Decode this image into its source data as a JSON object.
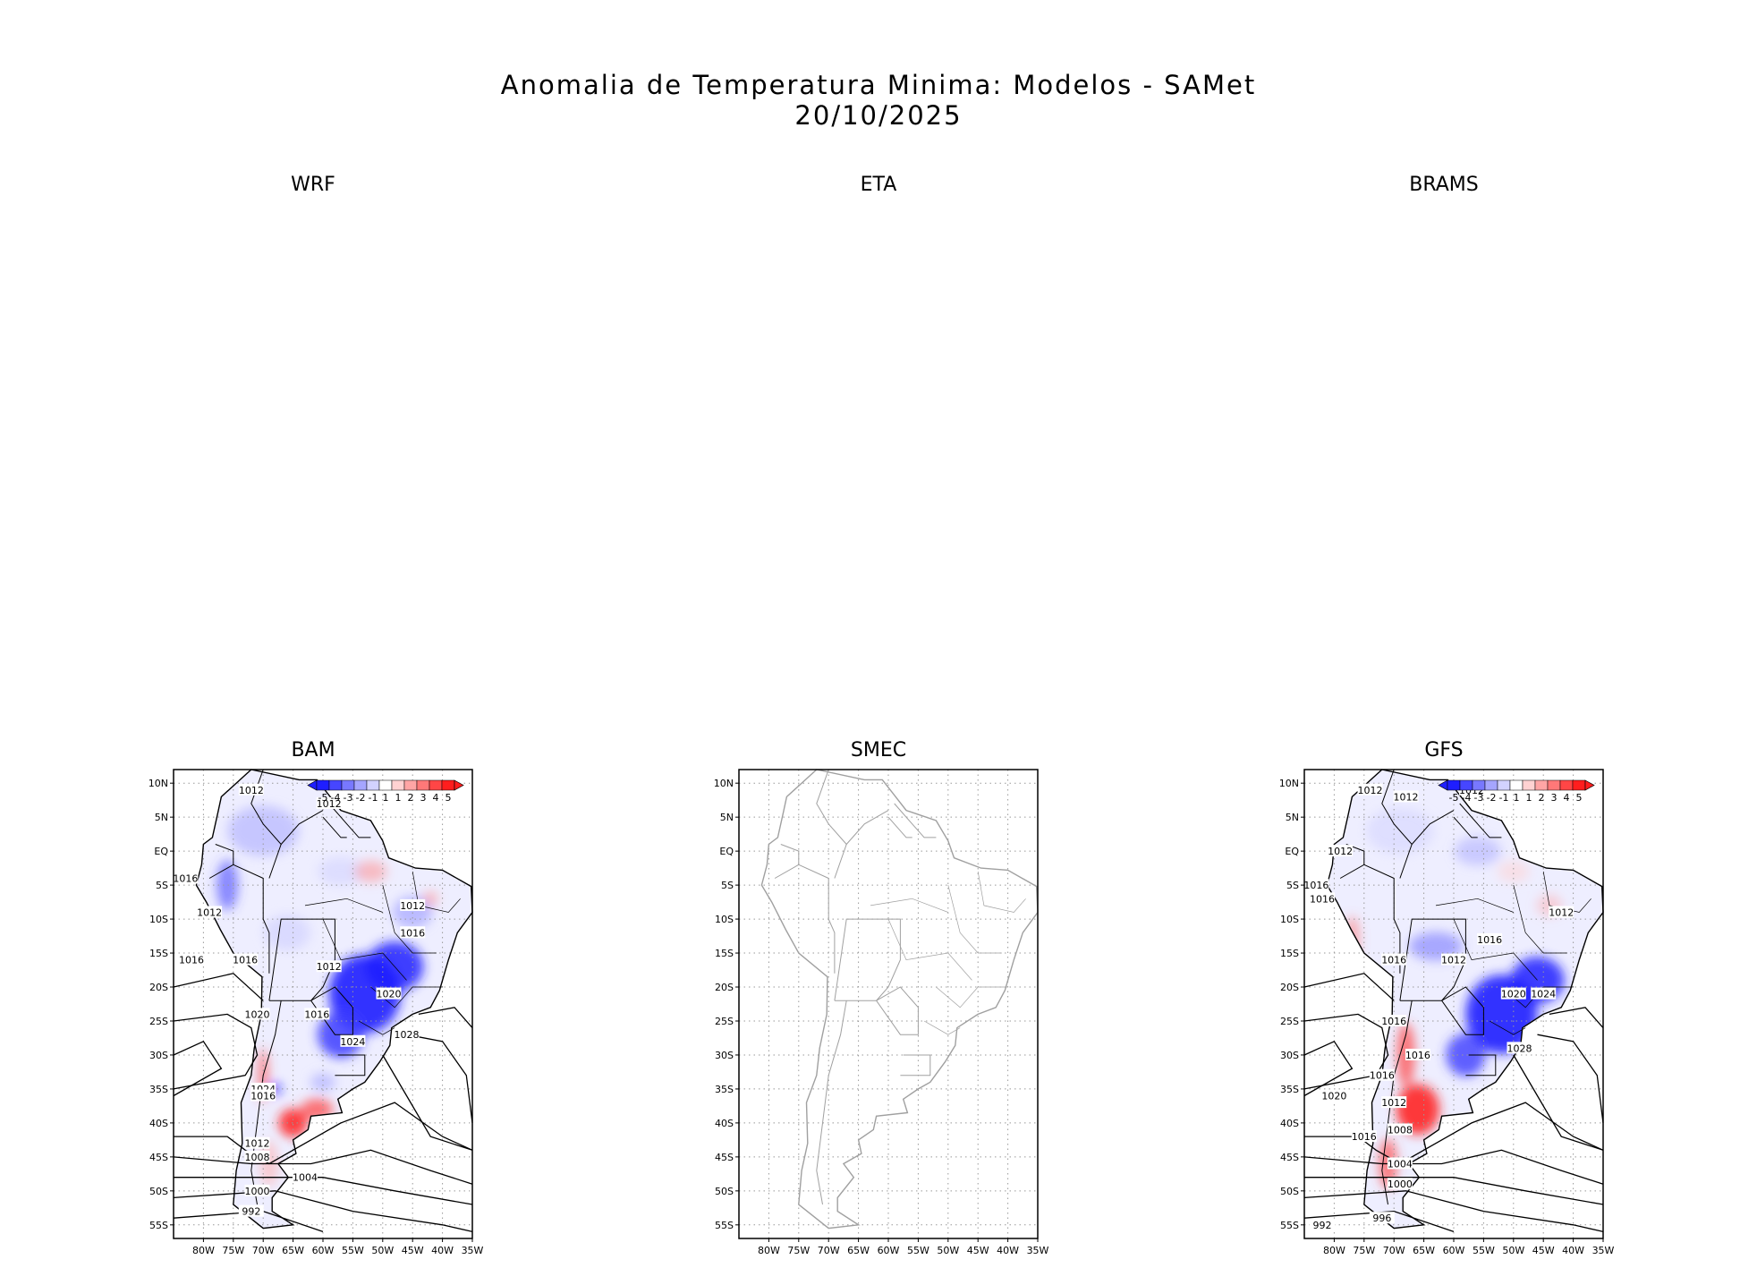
{
  "title": {
    "line1": "Anomalia de Temperatura Minima: Modelos - SAMet",
    "line2": "20/10/2025"
  },
  "panels": [
    {
      "id": "wrf",
      "title": "WRF"
    },
    {
      "id": "eta",
      "title": "ETA"
    },
    {
      "id": "brams",
      "title": "BRAMS"
    },
    {
      "id": "bam",
      "title": "BAM"
    },
    {
      "id": "smec",
      "title": "SMEC"
    },
    {
      "id": "gfs",
      "title": "GFS"
    }
  ],
  "axes": {
    "lat_labels": [
      "10N",
      "5N",
      "EQ",
      "5S",
      "10S",
      "15S",
      "20S",
      "25S",
      "30S",
      "35S",
      "40S",
      "45S",
      "50S",
      "55S"
    ],
    "lon_labels": [
      "80W",
      "75W",
      "70W",
      "65W",
      "60W",
      "55W",
      "50W",
      "45W",
      "40W",
      "35W"
    ]
  },
  "colorbar": {
    "labels": [
      "-5",
      "-4",
      "-3",
      "-2",
      "-1",
      "1",
      "1",
      "2",
      "3",
      "4",
      "5"
    ],
    "colors": [
      "#1e1eff",
      "#4646ff",
      "#7878ff",
      "#a5a5ff",
      "#d2d2ff",
      "#ffffff",
      "#ffd2d2",
      "#ffa5a5",
      "#ff7878",
      "#ff4646",
      "#ff1e1e"
    ]
  },
  "contour_labels": {
    "bam": [
      "1012",
      "1012",
      "1016",
      "1012",
      "1012",
      "1016",
      "1016",
      "1016",
      "1012",
      "1020",
      "1016",
      "1020",
      "1024",
      "1028",
      "1024",
      "1016",
      "1012",
      "1008",
      "1004",
      "1000",
      "992"
    ],
    "gfs": [
      "1012",
      "1012",
      "1012",
      "1012",
      "1016",
      "1016",
      "1012",
      "1016",
      "1016",
      "1012",
      "1020",
      "1024",
      "1016",
      "1016",
      "1028",
      "1016",
      "1020",
      "1012",
      "1008",
      "1016",
      "1004",
      "1000",
      "996",
      "992"
    ]
  },
  "colors": {
    "cold": "#1e1eff",
    "warm": "#ff1e1e",
    "map_line": "#000000",
    "map_line_empty": "#a0a0a0",
    "grid": "#999999"
  }
}
